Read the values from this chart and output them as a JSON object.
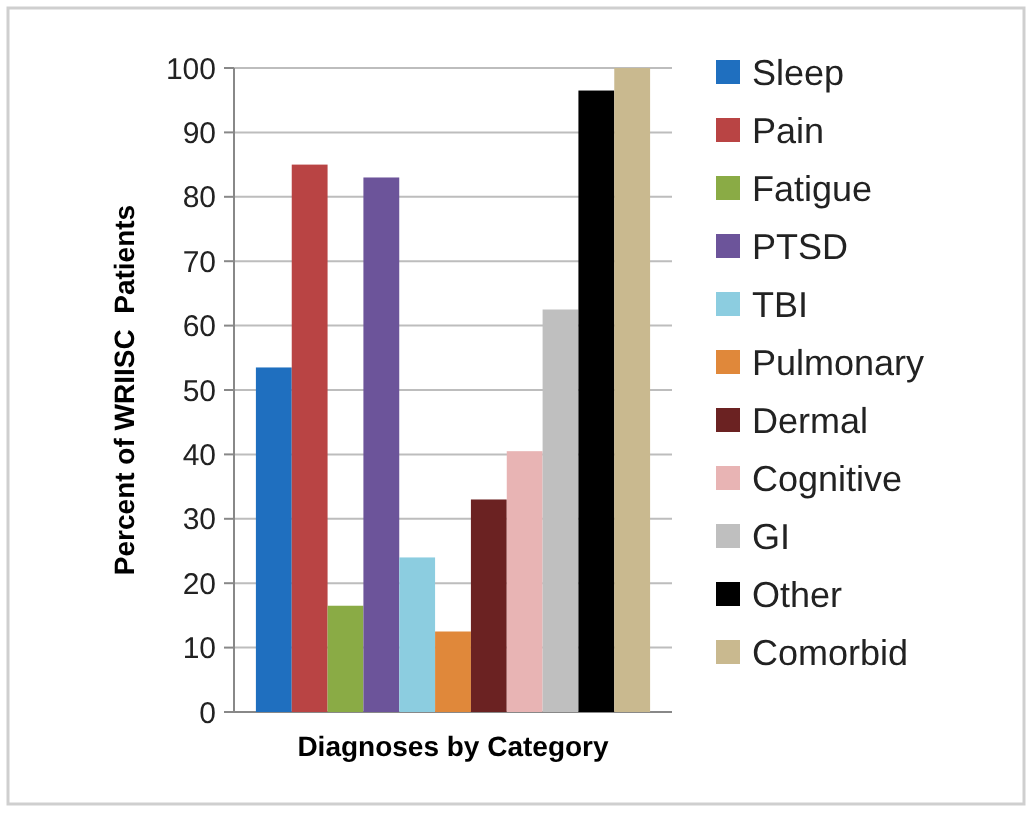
{
  "chart_data": {
    "type": "bar",
    "xlabel": "Diagnoses by Category",
    "ylabel": "Percent of WRIISC  Patients",
    "categories": [
      null
    ],
    "series": [
      {
        "name": "Sleep",
        "color": "#1f6fbf",
        "values": [
          53.5
        ]
      },
      {
        "name": "Pain",
        "color": "#b94444",
        "values": [
          85
        ]
      },
      {
        "name": "Fatigue",
        "color": "#8aab45",
        "values": [
          16.5
        ]
      },
      {
        "name": "PTSD",
        "color": "#6c549a",
        "values": [
          83
        ]
      },
      {
        "name": "TBI",
        "color": "#8ccde0",
        "values": [
          24
        ]
      },
      {
        "name": "Pulmonary",
        "color": "#e0883a",
        "values": [
          12.5
        ]
      },
      {
        "name": "Dermal",
        "color": "#6b2222",
        "values": [
          33
        ]
      },
      {
        "name": "Cognitive",
        "color": "#e8b4b4",
        "values": [
          40.5
        ]
      },
      {
        "name": "GI",
        "color": "#bfbfbf",
        "values": [
          62.5
        ]
      },
      {
        "name": "Other",
        "color": "#000000",
        "values": [
          96.5
        ]
      },
      {
        "name": "Comorbid",
        "color": "#c9b98f",
        "values": [
          100
        ]
      }
    ],
    "ylim": [
      0,
      100
    ],
    "yticks": [
      0,
      10,
      20,
      30,
      40,
      50,
      60,
      70,
      80,
      90,
      100
    ],
    "grid": "y",
    "legend": "right"
  }
}
